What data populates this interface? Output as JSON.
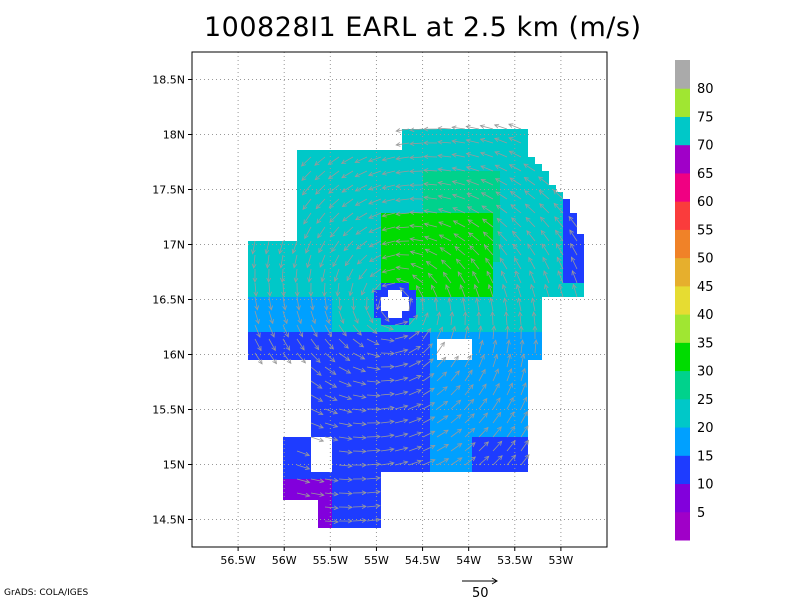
{
  "title": "100828I1 EARL at 2.5 km (m/s)",
  "footer": "GrADS: COLA/IGES",
  "reference_vector": {
    "label": "50",
    "value": 50
  },
  "map": {
    "lon_range": [
      -57.0,
      -52.5
    ],
    "lat_range": [
      14.25,
      18.75
    ],
    "lat_ticks": [
      {
        "value": 18.5,
        "label": "18.5N"
      },
      {
        "value": 18.0,
        "label": "18N"
      },
      {
        "value": 17.5,
        "label": "17.5N"
      },
      {
        "value": 17.0,
        "label": "17N"
      },
      {
        "value": 16.5,
        "label": "16.5N"
      },
      {
        "value": 16.0,
        "label": "16N"
      },
      {
        "value": 15.5,
        "label": "15.5N"
      },
      {
        "value": 15.0,
        "label": "15N"
      },
      {
        "value": 14.5,
        "label": "14.5N"
      }
    ],
    "lon_ticks": [
      {
        "value": -56.5,
        "label": "56.5W"
      },
      {
        "value": -56.0,
        "label": "56W"
      },
      {
        "value": -55.5,
        "label": "55.5W"
      },
      {
        "value": -55.0,
        "label": "55W"
      },
      {
        "value": -54.5,
        "label": "54.5W"
      },
      {
        "value": -54.0,
        "label": "54W"
      },
      {
        "value": -53.5,
        "label": "53.5W"
      },
      {
        "value": -53.0,
        "label": "53W"
      }
    ],
    "grid": true,
    "storm_center": {
      "lon": -54.8,
      "lat": 16.45
    }
  },
  "colorbar": {
    "placement": "right",
    "labels": [
      "5",
      "10",
      "15",
      "20",
      "25",
      "30",
      "35",
      "40",
      "45",
      "50",
      "55",
      "60",
      "65",
      "70",
      "75",
      "80"
    ],
    "colors": [
      "#a000c8",
      "#8200dc",
      "#1e3cff",
      "#00a0ff",
      "#00c8c8",
      "#00d28c",
      "#00dc00",
      "#a0e632",
      "#e6dc32",
      "#e6af2d",
      "#f08228",
      "#fa3c3c",
      "#f00082",
      "#a000c8",
      "#00c8c8",
      "#a0e632",
      "#aaaaaa"
    ]
  }
}
